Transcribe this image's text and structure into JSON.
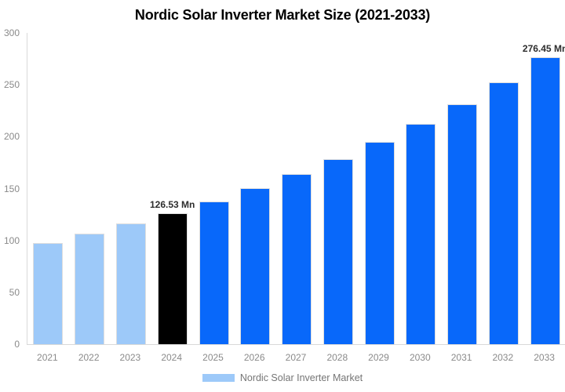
{
  "chart_data": {
    "type": "bar",
    "title": "Nordic Solar Inverter Market Size (2021-2033)",
    "unit": "Mn",
    "categories": [
      "2021",
      "2022",
      "2023",
      "2024",
      "2025",
      "2026",
      "2027",
      "2028",
      "2029",
      "2030",
      "2031",
      "2032",
      "2033"
    ],
    "values": [
      97.7,
      106.5,
      116.1,
      126.53,
      137.9,
      150.3,
      163.9,
      178.7,
      194.8,
      212.3,
      231.4,
      252.2,
      276.45
    ],
    "labeled_points": [
      {
        "index": 3,
        "label": "126.53 Mn"
      },
      {
        "index": 12,
        "label": "276.45 Mn"
      }
    ],
    "ylim": [
      0,
      300
    ],
    "yticks": [
      0,
      50,
      100,
      150,
      200,
      250,
      300
    ],
    "grid": false,
    "xlabel": "",
    "ylabel": "",
    "bar_colors": [
      "#9dc9f9",
      "#9dc9f9",
      "#9dc9f9",
      "#000000",
      "#0868fa",
      "#0868fa",
      "#0868fa",
      "#0868fa",
      "#0868fa",
      "#0868fa",
      "#0868fa",
      "#0868fa",
      "#0868fa"
    ],
    "legend": [
      {
        "label": "Nordic Solar Inverter Market",
        "color": "#9dc9f9"
      }
    ],
    "legend_position": "bottom"
  },
  "colors": {
    "background": "#ffffff",
    "axis_line": "#d9d9d9",
    "bar_border": "#dedede",
    "tick_label": "#8a8a8a",
    "value_label": "#2d2d2d",
    "legend_text": "#757575",
    "title": "#000000"
  }
}
